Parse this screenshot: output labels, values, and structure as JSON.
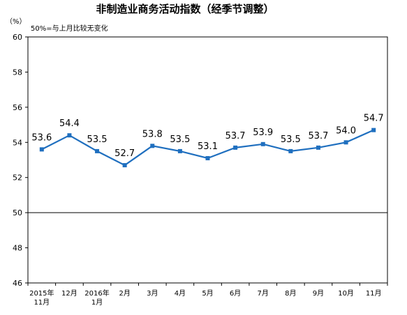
{
  "chart_data": {
    "type": "line",
    "title": "非制造业商务活动指数（经季节调整）",
    "unit_label": "（%）",
    "annotation": "50%=与上月比较无变化",
    "categories": [
      [
        "2015年",
        "11月"
      ],
      [
        "12月"
      ],
      [
        "2016年",
        "1月"
      ],
      [
        "2月"
      ],
      [
        "3月"
      ],
      [
        "4月"
      ],
      [
        "5月"
      ],
      [
        "6月"
      ],
      [
        "7月"
      ],
      [
        "8月"
      ],
      [
        "9月"
      ],
      [
        "10月"
      ],
      [
        "11月"
      ]
    ],
    "values": [
      53.6,
      54.4,
      53.5,
      52.7,
      53.8,
      53.5,
      53.1,
      53.7,
      53.9,
      53.5,
      53.7,
      54.0,
      54.7
    ],
    "value_labels": [
      "53.6",
      "54.4",
      "53.5",
      "52.7",
      "53.8",
      "53.5",
      "53.1",
      "53.7",
      "53.9",
      "53.5",
      "53.7",
      "54.0",
      "54.7"
    ],
    "ylim": [
      46,
      60
    ],
    "yticks": [
      46,
      48,
      50,
      52,
      54,
      56,
      58,
      60
    ],
    "reference_line": 50,
    "grid": false,
    "line_color": "#1f6fbf",
    "marker_color": "#1f6fbf"
  }
}
